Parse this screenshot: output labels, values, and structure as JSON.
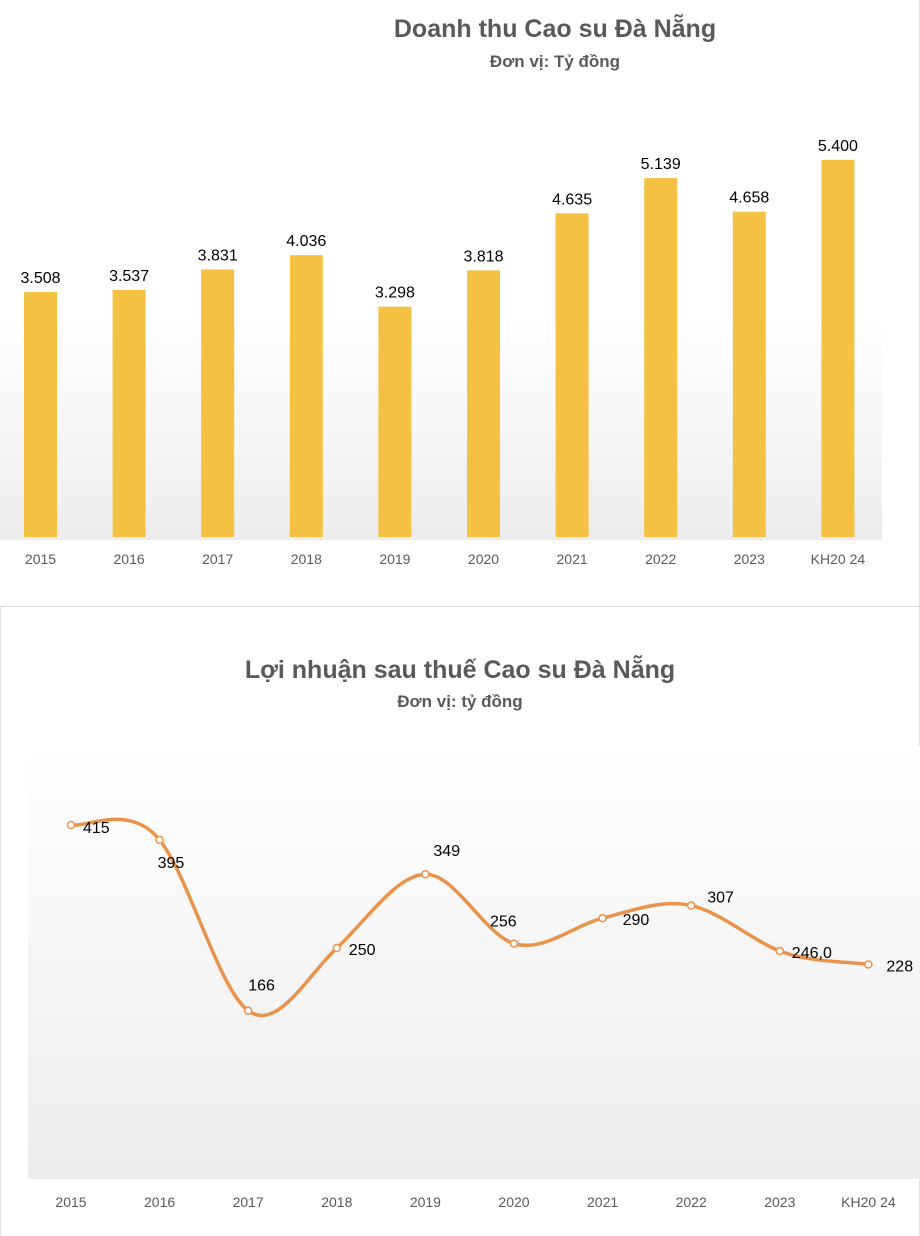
{
  "chart_data": [
    {
      "type": "bar",
      "title": "Doanh thu Cao su Đà Nẵng",
      "subtitle": "Đơn vị: Tỷ đồng",
      "categories": [
        "2015",
        "2016",
        "2017",
        "2018",
        "2019",
        "2020",
        "2021",
        "2022",
        "2023",
        "KH20 24"
      ],
      "values": [
        3508,
        3537,
        3831,
        4036,
        3298,
        3818,
        4635,
        5139,
        4658,
        5400
      ],
      "data_labels": [
        "3.508",
        "3.537",
        "3.831",
        "4.036",
        "3.298",
        "3.818",
        "4.635",
        "5.139",
        "4.658",
        "5.400"
      ],
      "ylim": [
        0,
        6100
      ],
      "bar_color": "#F4C142",
      "grid": false,
      "legend": "none"
    },
    {
      "type": "line",
      "title": "Lợi nhuận sau thuế Cao su Đà Nẵng",
      "subtitle": "Đơn vị: tỷ đồng",
      "categories": [
        "2015",
        "2016",
        "2017",
        "2018",
        "2019",
        "2020",
        "2021",
        "2022",
        "2023",
        "KH20 24"
      ],
      "values": [
        415,
        395,
        166,
        250,
        349,
        256,
        290,
        307,
        246,
        228
      ],
      "data_labels": [
        "415",
        "395",
        "166",
        "250",
        "349",
        "256",
        "290",
        "307",
        "246,0",
        "228"
      ],
      "ylim": [
        0,
        500
      ],
      "line_color": "#E8924A",
      "smooth": true,
      "grid": false,
      "legend": "none"
    }
  ]
}
